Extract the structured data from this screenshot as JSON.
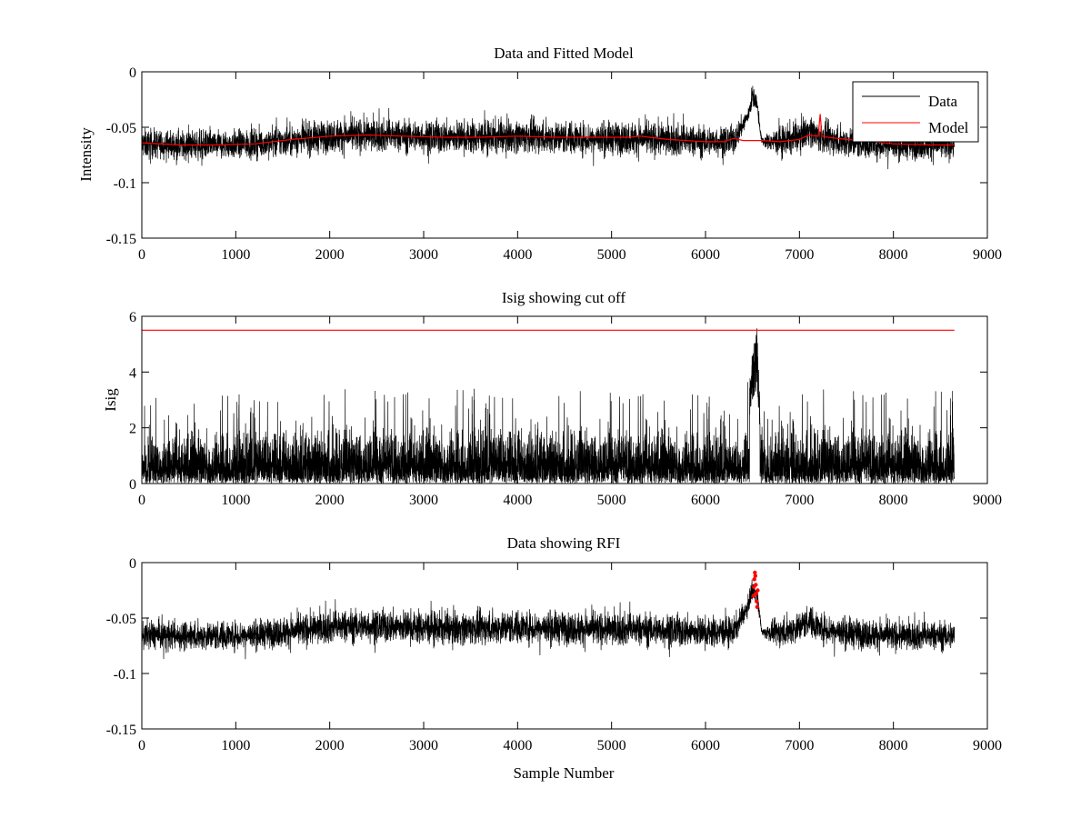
{
  "chart_data": [
    {
      "type": "line",
      "title": "Data and Fitted Model",
      "xlabel": "",
      "ylabel": "Intensity",
      "xlim": [
        0,
        9000
      ],
      "ylim": [
        -0.15,
        0
      ],
      "xticks": [
        0,
        1000,
        2000,
        3000,
        4000,
        5000,
        6000,
        7000,
        8000,
        9000
      ],
      "xtick_labels": [
        "0",
        "1000",
        "2000",
        "3000",
        "4000",
        "5000",
        "6000",
        "7000",
        "8000",
        "9000"
      ],
      "yticks": [
        -0.15,
        -0.1,
        -0.05,
        0
      ],
      "ytick_labels": [
        "-0.15",
        "-0.1",
        "-0.05",
        "0"
      ],
      "grid": false,
      "legend": {
        "placement": "top-right",
        "entries": [
          "Data",
          "Model"
        ]
      },
      "series": [
        {
          "name": "Data",
          "color": "#000000",
          "style": "noisy-band",
          "x": [
            0,
            400,
            800,
            1200,
            1600,
            2000,
            2400,
            2800,
            3200,
            3600,
            4000,
            4400,
            4800,
            5200,
            5600,
            6000,
            6300,
            6450,
            6500,
            6550,
            6600,
            6800,
            7000,
            7100,
            7200,
            7400,
            7600,
            8000,
            8400,
            8650
          ],
          "center": [
            -0.065,
            -0.066,
            -0.066,
            -0.065,
            -0.062,
            -0.058,
            -0.057,
            -0.058,
            -0.059,
            -0.059,
            -0.058,
            -0.059,
            -0.06,
            -0.06,
            -0.061,
            -0.063,
            -0.062,
            -0.04,
            -0.022,
            -0.03,
            -0.063,
            -0.063,
            -0.058,
            -0.052,
            -0.058,
            -0.062,
            -0.064,
            -0.066,
            -0.066,
            -0.066
          ],
          "amplitude": [
            0.014,
            0.014,
            0.014,
            0.014,
            0.015,
            0.016,
            0.016,
            0.016,
            0.016,
            0.016,
            0.016,
            0.016,
            0.016,
            0.016,
            0.016,
            0.015,
            0.014,
            0.008,
            0.012,
            0.008,
            0.004,
            0.015,
            0.015,
            0.015,
            0.015,
            0.015,
            0.015,
            0.014,
            0.014,
            0.014
          ]
        },
        {
          "name": "Model",
          "color": "#ff0000",
          "x": [
            0,
            400,
            800,
            1200,
            1600,
            2000,
            2400,
            2800,
            3200,
            3600,
            4000,
            4400,
            4800,
            5200,
            5300,
            5400,
            5600,
            6000,
            6200,
            6300,
            6400,
            6500,
            6600,
            6800,
            7000,
            7100,
            7200,
            7220,
            7240,
            7300,
            7500,
            7800,
            8000,
            8400,
            8650
          ],
          "y": [
            -0.064,
            -0.066,
            -0.066,
            -0.065,
            -0.061,
            -0.058,
            -0.057,
            -0.058,
            -0.059,
            -0.059,
            -0.058,
            -0.059,
            -0.059,
            -0.059,
            -0.058,
            -0.059,
            -0.061,
            -0.063,
            -0.063,
            -0.06,
            -0.062,
            -0.062,
            -0.062,
            -0.063,
            -0.061,
            -0.057,
            -0.058,
            -0.038,
            -0.058,
            -0.059,
            -0.061,
            -0.063,
            -0.065,
            -0.066,
            -0.066
          ]
        }
      ]
    },
    {
      "type": "line",
      "title": "Isig showing cut off",
      "xlabel": "",
      "ylabel": "Isig",
      "xlim": [
        0,
        9000
      ],
      "ylim": [
        0,
        6
      ],
      "xticks": [
        0,
        1000,
        2000,
        3000,
        4000,
        5000,
        6000,
        7000,
        8000,
        9000
      ],
      "xtick_labels": [
        "0",
        "1000",
        "2000",
        "3000",
        "4000",
        "5000",
        "6000",
        "7000",
        "8000",
        "9000"
      ],
      "yticks": [
        0,
        2,
        4,
        6
      ],
      "ytick_labels": [
        "0",
        "2",
        "4",
        "6"
      ],
      "grid": false,
      "series": [
        {
          "color": "#000000",
          "style": "spiky-from-zero",
          "x": [
            0,
            1000,
            2000,
            3000,
            4000,
            5000,
            6000,
            6400,
            6450,
            6500,
            6550,
            6580,
            6620,
            7000,
            8000,
            8650
          ],
          "typical_max": [
            2.2,
            2.3,
            2.5,
            2.4,
            2.5,
            2.4,
            2.3,
            1.8,
            3.0,
            5.0,
            5.6,
            3.0,
            2.4,
            2.5,
            2.4,
            2.4
          ]
        },
        {
          "color": "#ff0000",
          "x": [
            0,
            8650
          ],
          "y": [
            5.5,
            5.5
          ]
        }
      ]
    },
    {
      "type": "line",
      "title": "Data showing RFI",
      "xlabel": "Sample Number",
      "ylabel": "",
      "xlim": [
        0,
        9000
      ],
      "ylim": [
        -0.15,
        0
      ],
      "xticks": [
        0,
        1000,
        2000,
        3000,
        4000,
        5000,
        6000,
        7000,
        8000,
        9000
      ],
      "xtick_labels": [
        "0",
        "1000",
        "2000",
        "3000",
        "4000",
        "5000",
        "6000",
        "7000",
        "8000",
        "9000"
      ],
      "yticks": [
        -0.15,
        -0.1,
        -0.05,
        0
      ],
      "ytick_labels": [
        "-0.15",
        "-0.1",
        "-0.05",
        "0"
      ],
      "grid": false,
      "series": [
        {
          "color": "#000000",
          "style": "noisy-band",
          "x": [
            0,
            400,
            800,
            1200,
            1600,
            2000,
            2400,
            2800,
            3200,
            3600,
            4000,
            4400,
            4800,
            5200,
            5600,
            6000,
            6300,
            6450,
            6500,
            6550,
            6600,
            6800,
            7000,
            7100,
            7200,
            7400,
            7600,
            8000,
            8400,
            8650
          ],
          "center": [
            -0.065,
            -0.066,
            -0.066,
            -0.065,
            -0.062,
            -0.058,
            -0.057,
            -0.058,
            -0.059,
            -0.059,
            -0.058,
            -0.059,
            -0.06,
            -0.06,
            -0.061,
            -0.063,
            -0.062,
            -0.04,
            -0.022,
            -0.03,
            -0.063,
            -0.063,
            -0.058,
            -0.052,
            -0.058,
            -0.062,
            -0.064,
            -0.066,
            -0.066,
            -0.066
          ],
          "amplitude": [
            0.014,
            0.014,
            0.014,
            0.014,
            0.015,
            0.016,
            0.016,
            0.016,
            0.016,
            0.016,
            0.016,
            0.016,
            0.016,
            0.016,
            0.016,
            0.015,
            0.014,
            0.008,
            0.012,
            0.008,
            0.004,
            0.015,
            0.015,
            0.015,
            0.015,
            0.015,
            0.015,
            0.014,
            0.014,
            0.014
          ]
        },
        {
          "color": "#ff0000",
          "style": "markers",
          "x": [
            6510,
            6515,
            6520,
            6525,
            6530,
            6535,
            6540,
            6545,
            6550,
            6555
          ],
          "y": [
            -0.03,
            -0.022,
            -0.015,
            -0.009,
            -0.012,
            -0.02,
            -0.028,
            -0.035,
            -0.04,
            -0.025
          ]
        }
      ]
    }
  ]
}
